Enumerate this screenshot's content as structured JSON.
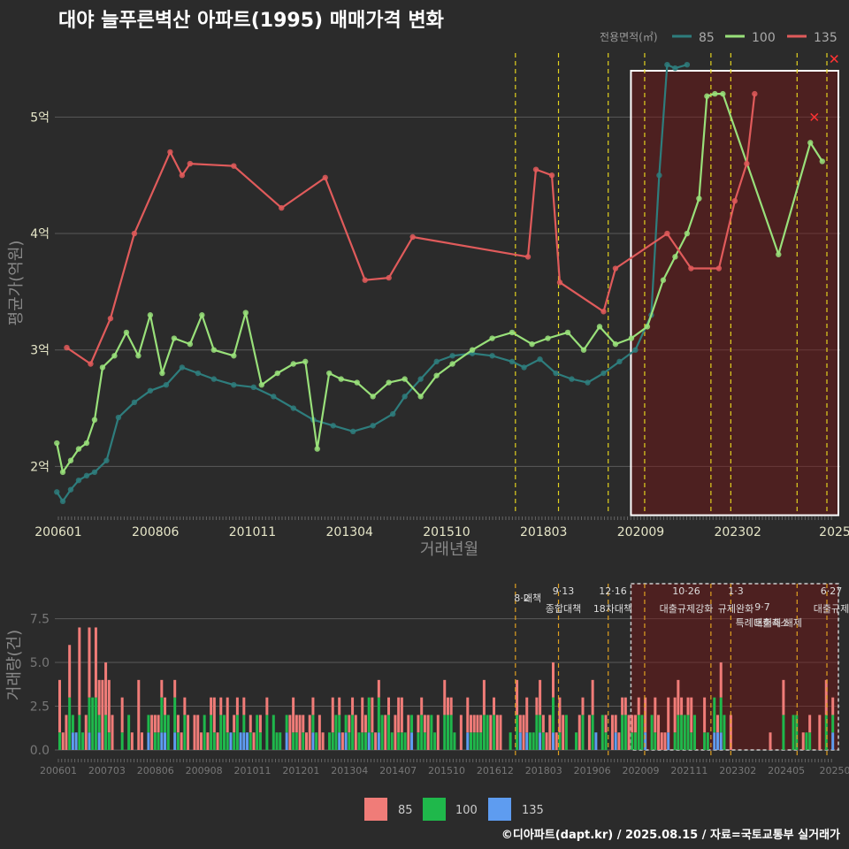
{
  "chart_data": [
    {
      "type": "line",
      "title": "대야 늘푸른벽산 아파트(1995) 매매가격 변화",
      "xlabel": "거래년월",
      "ylabel": "평균가(억원)",
      "x_ticks": [
        "200601",
        "200806",
        "201011",
        "201304",
        "201510",
        "201803",
        "202009",
        "202302",
        "2025"
      ],
      "y_ticks": [
        {
          "v": 2,
          "label": "2억"
        },
        {
          "v": 3,
          "label": "3억"
        },
        {
          "v": 4,
          "label": "4억"
        },
        {
          "v": 5,
          "label": "5억"
        }
      ],
      "ylim": [
        1.6,
        5.55
      ],
      "legend_title": "전용면적(㎡)",
      "series": [
        {
          "name": "85",
          "color": "#2e7d7d",
          "points": [
            [
              2006.05,
              1.78
            ],
            [
              2006.2,
              1.7
            ],
            [
              2006.4,
              1.8
            ],
            [
              2006.6,
              1.88
            ],
            [
              2006.8,
              1.92
            ],
            [
              2007.0,
              1.95
            ],
            [
              2007.3,
              2.05
            ],
            [
              2007.6,
              2.42
            ],
            [
              2008.0,
              2.55
            ],
            [
              2008.4,
              2.65
            ],
            [
              2008.8,
              2.7
            ],
            [
              2009.2,
              2.85
            ],
            [
              2009.6,
              2.8
            ],
            [
              2010.0,
              2.75
            ],
            [
              2010.5,
              2.7
            ],
            [
              2011.0,
              2.68
            ],
            [
              2011.5,
              2.6
            ],
            [
              2012.0,
              2.5
            ],
            [
              2012.5,
              2.4
            ],
            [
              2013.0,
              2.35
            ],
            [
              2013.5,
              2.3
            ],
            [
              2014.0,
              2.35
            ],
            [
              2014.5,
              2.45
            ],
            [
              2014.8,
              2.6
            ],
            [
              2015.2,
              2.75
            ],
            [
              2015.6,
              2.9
            ],
            [
              2016.0,
              2.95
            ],
            [
              2016.5,
              2.97
            ],
            [
              2017.0,
              2.95
            ],
            [
              2017.5,
              2.9
            ],
            [
              2017.8,
              2.85
            ],
            [
              2018.2,
              2.92
            ],
            [
              2018.6,
              2.8
            ],
            [
              2019.0,
              2.75
            ],
            [
              2019.4,
              2.72
            ],
            [
              2019.8,
              2.8
            ],
            [
              2020.2,
              2.9
            ],
            [
              2020.6,
              3.0
            ],
            [
              2021.0,
              3.3
            ],
            [
              2021.2,
              4.5
            ],
            [
              2021.4,
              5.45
            ],
            [
              2021.6,
              5.42
            ],
            [
              2021.9,
              5.45
            ]
          ]
        },
        {
          "name": "100",
          "color": "#99e07a",
          "points": [
            [
              2006.05,
              2.2
            ],
            [
              2006.2,
              1.95
            ],
            [
              2006.4,
              2.05
            ],
            [
              2006.6,
              2.15
            ],
            [
              2006.8,
              2.2
            ],
            [
              2007.0,
              2.4
            ],
            [
              2007.2,
              2.85
            ],
            [
              2007.5,
              2.95
            ],
            [
              2007.8,
              3.15
            ],
            [
              2008.1,
              2.95
            ],
            [
              2008.4,
              3.3
            ],
            [
              2008.7,
              2.8
            ],
            [
              2009.0,
              3.1
            ],
            [
              2009.4,
              3.05
            ],
            [
              2009.7,
              3.3
            ],
            [
              2010.0,
              3.0
            ],
            [
              2010.5,
              2.95
            ],
            [
              2010.8,
              3.32
            ],
            [
              2011.2,
              2.7
            ],
            [
              2011.6,
              2.8
            ],
            [
              2012.0,
              2.88
            ],
            [
              2012.3,
              2.9
            ],
            [
              2012.6,
              2.15
            ],
            [
              2012.9,
              2.8
            ],
            [
              2013.2,
              2.75
            ],
            [
              2013.6,
              2.72
            ],
            [
              2014.0,
              2.6
            ],
            [
              2014.4,
              2.72
            ],
            [
              2014.8,
              2.75
            ],
            [
              2015.2,
              2.6
            ],
            [
              2015.6,
              2.78
            ],
            [
              2016.0,
              2.88
            ],
            [
              2016.5,
              3.0
            ],
            [
              2017.0,
              3.1
            ],
            [
              2017.5,
              3.15
            ],
            [
              2018.0,
              3.05
            ],
            [
              2018.4,
              3.1
            ],
            [
              2018.9,
              3.15
            ],
            [
              2019.3,
              3.0
            ],
            [
              2019.7,
              3.2
            ],
            [
              2020.1,
              3.05
            ],
            [
              2020.5,
              3.1
            ],
            [
              2020.9,
              3.2
            ],
            [
              2021.3,
              3.6
            ],
            [
              2021.6,
              3.8
            ],
            [
              2021.9,
              4.0
            ],
            [
              2022.2,
              4.3
            ],
            [
              2022.4,
              5.18
            ],
            [
              2022.6,
              5.2
            ],
            [
              2022.8,
              5.2
            ],
            [
              2024.2,
              3.82
            ],
            [
              2025.0,
              4.78
            ],
            [
              2025.3,
              4.62
            ]
          ]
        },
        {
          "name": "135",
          "color": "#e05b5b",
          "points": [
            [
              2006.3,
              3.02
            ],
            [
              2006.9,
              2.88
            ],
            [
              2007.4,
              3.27
            ],
            [
              2008.0,
              4.0
            ],
            [
              2008.9,
              4.7
            ],
            [
              2009.2,
              4.5
            ],
            [
              2009.4,
              4.6
            ],
            [
              2010.5,
              4.58
            ],
            [
              2011.7,
              4.22
            ],
            [
              2012.8,
              4.48
            ],
            [
              2013.8,
              3.6
            ],
            [
              2014.4,
              3.62
            ],
            [
              2015.0,
              3.97
            ],
            [
              2017.9,
              3.8
            ],
            [
              2018.1,
              4.55
            ],
            [
              2018.5,
              4.5
            ],
            [
              2018.7,
              3.58
            ],
            [
              2019.8,
              3.33
            ],
            [
              2020.1,
              3.7
            ],
            [
              2021.4,
              4.0
            ],
            [
              2022.0,
              3.7
            ],
            [
              2022.7,
              3.7
            ],
            [
              2023.1,
              4.28
            ],
            [
              2023.4,
              4.6
            ],
            [
              2023.6,
              5.2
            ]
          ]
        }
      ],
      "policy_lines": [
        "201708",
        "201809",
        "201912",
        "202011",
        "202207",
        "202301",
        "202409",
        "202506"
      ],
      "highlight_range": [
        "202009",
        "2025"
      ],
      "extra_markers": [
        {
          "x": 2025.1,
          "y": 5.0,
          "shape": "x"
        },
        {
          "x": 2025.6,
          "y": 5.5,
          "shape": "x"
        }
      ]
    },
    {
      "type": "bar",
      "ylabel": "거래량(건)",
      "y_ticks": [
        {
          "v": 0,
          "label": "0.0"
        },
        {
          "v": 2.5,
          "label": "2.5"
        },
        {
          "v": 5.0,
          "label": "5.0"
        },
        {
          "v": 7.5,
          "label": "7.5"
        }
      ],
      "ylim": [
        0,
        9.5
      ],
      "x_ticks": [
        "200601",
        "200703",
        "200806",
        "200908",
        "201011",
        "201201",
        "201304",
        "201407",
        "201510",
        "201612",
        "201803",
        "201906",
        "202009",
        "202111",
        "202302",
        "202405",
        "20250"
      ],
      "series_colors": {
        "85": "#f07c78",
        "100": "#1fb84b",
        "135": "#5e9cf0"
      },
      "policy_labels": [
        {
          "date": "8·2",
          "text": "대책"
        },
        {
          "date": "9·13",
          "text": "종합대책"
        },
        {
          "date": "12·16",
          "text": "18차대책"
        },
        {
          "date": "10·26",
          "text": "대출규제강화"
        },
        {
          "date": "1·3",
          "text": "규제완화"
        },
        {
          "date": "9·7",
          "text": "특례대출축소"
        },
        {
          "date": "",
          "text": "토허제 해제"
        },
        {
          "date": "6·27",
          "text": "대출규제"
        }
      ]
    }
  ],
  "legend_bottom": [
    {
      "name": "85",
      "color": "#f07c78"
    },
    {
      "name": "100",
      "color": "#1fb84b"
    },
    {
      "name": "135",
      "color": "#5e9cf0"
    }
  ],
  "footer": "©디아파트(dapt.kr) / 2025.08.15 / 자료=국토교통부 실거래가"
}
